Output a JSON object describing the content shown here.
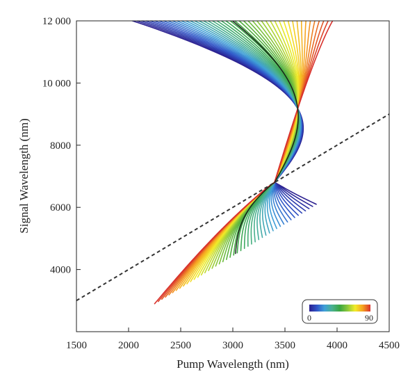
{
  "chart_data": {
    "type": "line",
    "xlabel": "Pump Wavelength (nm)",
    "ylabel": "Signal Wavelength (nm)",
    "xlim": [
      1500,
      4500
    ],
    "ylim": [
      2000,
      12000
    ],
    "x_ticks": [
      1500,
      2000,
      2500,
      3000,
      3500,
      4000,
      4500
    ],
    "x_tick_labels": [
      "1500",
      "2000",
      "2500",
      "3000",
      "3500",
      "4000",
      "4500"
    ],
    "y_ticks": [
      4000,
      6000,
      8000,
      10000,
      12000
    ],
    "y_tick_labels": [
      "4000",
      "6000",
      "8000",
      "10 000",
      "12 000"
    ],
    "grid": false,
    "colorbar": {
      "min_label": "0",
      "max_label": "90",
      "min": 0,
      "max": 90,
      "placement": "bottom-right",
      "colors": [
        "#2b1f8f",
        "#2f55c8",
        "#3fa0d8",
        "#49b08f",
        "#3aa640",
        "#8cc83c",
        "#f2ec28",
        "#f6a020",
        "#d8302c"
      ]
    },
    "crossing_point": {
      "x": 3400,
      "y": 6800
    },
    "family": {
      "count": 46,
      "param_min": 0,
      "param_max": 90,
      "upper_branch": {
        "top_x_at_param_min": 1830,
        "top_x_at_param_max": 4000,
        "sag_at_param_min": 820,
        "sag_at_param_max": 0
      },
      "lower_branch_low": {
        "end_x": 2250,
        "end_y": 2900
      },
      "lower_branch_high": {
        "end_x": 3800,
        "end_y": 6100
      }
    },
    "highlighted_curves": [
      {
        "param": 45,
        "color": "#1a1a1a"
      }
    ],
    "reference_line": {
      "style": "dashed",
      "color": "#333333",
      "x": [
        1500,
        4500
      ],
      "y": [
        3000,
        9000
      ]
    },
    "annotations": []
  }
}
